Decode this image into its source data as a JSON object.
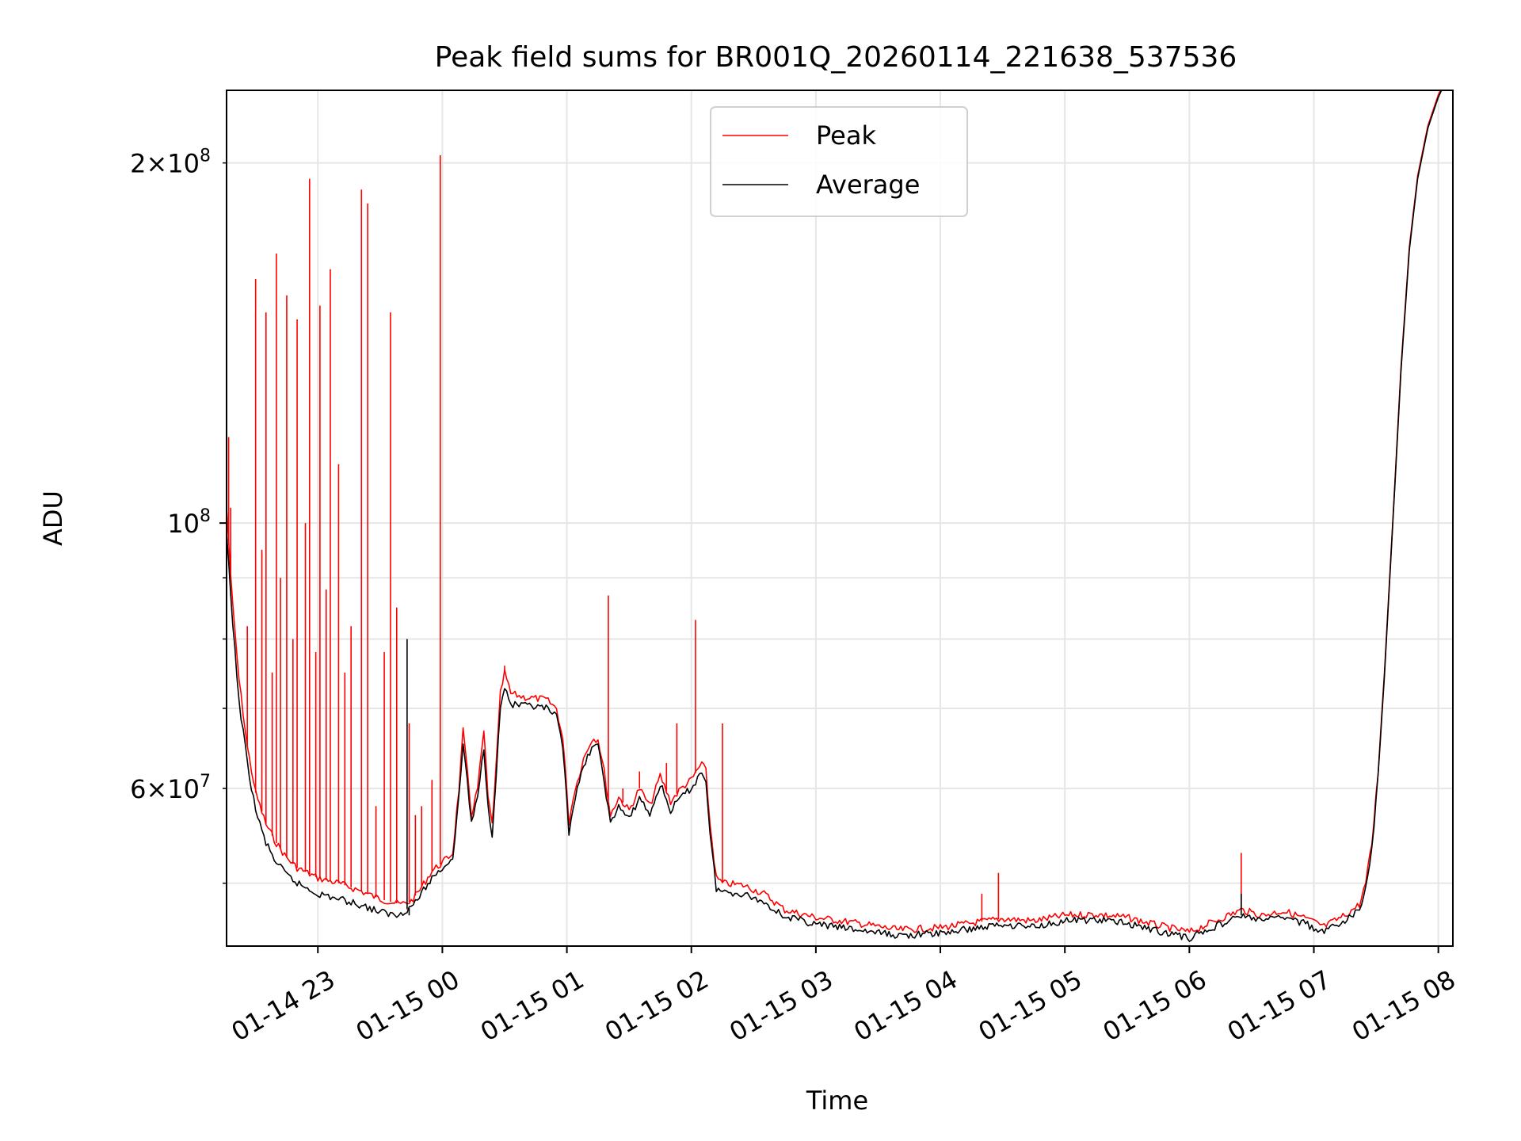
{
  "chart_data": {
    "type": "line",
    "title": "Peak field sums for BR001Q_20260114_221638_537536",
    "xlabel": "Time",
    "ylabel": "ADU",
    "y_scale": "log",
    "grid": true,
    "legend_position": "top-center",
    "xlim": [
      "2026-01-14 22:16",
      "2026-01-15 08:07"
    ],
    "ylim": [
      44300000,
      230000000
    ],
    "x_ticks": [
      {
        "value": "2026-01-14 23:00",
        "label": "01-14 23"
      },
      {
        "value": "2026-01-15 00:00",
        "label": "01-15 00"
      },
      {
        "value": "2026-01-15 01:00",
        "label": "01-15 01"
      },
      {
        "value": "2026-01-15 02:00",
        "label": "01-15 02"
      },
      {
        "value": "2026-01-15 03:00",
        "label": "01-15 03"
      },
      {
        "value": "2026-01-15 04:00",
        "label": "01-15 04"
      },
      {
        "value": "2026-01-15 05:00",
        "label": "01-15 05"
      },
      {
        "value": "2026-01-15 06:00",
        "label": "01-15 06"
      },
      {
        "value": "2026-01-15 07:00",
        "label": "01-15 07"
      },
      {
        "value": "2026-01-15 08:00",
        "label": "01-15 08"
      }
    ],
    "y_major_ticks": [
      {
        "value": 100000000,
        "base": "10",
        "exp": "8"
      }
    ],
    "y_minor_labeled_ticks": [
      {
        "value": 200000000,
        "mant": "2",
        "base": "10",
        "exp": "8"
      },
      {
        "value": 60000000,
        "mant": "6",
        "base": "10",
        "exp": "7"
      }
    ],
    "y_minor_grid": [
      50000000,
      70000000,
      80000000,
      90000000
    ],
    "series": [
      {
        "name": "Peak",
        "color": "#ff0000",
        "points": [
          [
            "2026-01-14 22:16",
            103000000
          ],
          [
            "2026-01-14 22:19",
            85000000
          ],
          [
            "2026-01-14 22:22",
            74000000
          ],
          [
            "2026-01-14 22:26",
            65000000
          ],
          [
            "2026-01-14 22:30",
            59500000
          ],
          [
            "2026-01-14 22:35",
            56000000
          ],
          [
            "2026-01-14 22:40",
            54000000
          ],
          [
            "2026-01-14 22:45",
            52500000
          ],
          [
            "2026-01-14 22:50",
            51500000
          ],
          [
            "2026-01-14 22:55",
            51000000
          ],
          [
            "2026-01-14 23:00",
            50500000
          ],
          [
            "2026-01-14 23:10",
            50000000
          ],
          [
            "2026-01-14 23:20",
            49300000
          ],
          [
            "2026-01-14 23:30",
            48500000
          ],
          [
            "2026-01-14 23:40",
            48000000
          ],
          [
            "2026-01-14 23:45",
            48300000
          ],
          [
            "2026-01-14 23:50",
            49600000
          ],
          [
            "2026-01-14 23:55",
            51200000
          ],
          [
            "2026-01-15 00:00",
            52000000
          ],
          [
            "2026-01-15 00:05",
            53000000
          ],
          [
            "2026-01-15 00:08",
            60000000
          ],
          [
            "2026-01-15 00:10",
            67000000
          ],
          [
            "2026-01-15 00:12",
            62000000
          ],
          [
            "2026-01-15 00:14",
            57000000
          ],
          [
            "2026-01-15 00:17",
            60000000
          ],
          [
            "2026-01-15 00:20",
            67000000
          ],
          [
            "2026-01-15 00:22",
            59000000
          ],
          [
            "2026-01-15 00:24",
            56000000
          ],
          [
            "2026-01-15 00:26",
            63000000
          ],
          [
            "2026-01-15 00:28",
            72000000
          ],
          [
            "2026-01-15 00:30",
            75000000
          ],
          [
            "2026-01-15 00:33",
            72000000
          ],
          [
            "2026-01-15 00:40",
            71500000
          ],
          [
            "2026-01-15 00:50",
            71200000
          ],
          [
            "2026-01-15 00:55",
            70000000
          ],
          [
            "2026-01-15 00:58",
            66000000
          ],
          [
            "2026-01-15 01:00",
            60000000
          ],
          [
            "2026-01-15 01:01",
            56000000
          ],
          [
            "2026-01-15 01:03",
            59000000
          ],
          [
            "2026-01-15 01:08",
            63500000
          ],
          [
            "2026-01-15 01:12",
            66000000
          ],
          [
            "2026-01-15 01:15",
            66000000
          ],
          [
            "2026-01-15 01:18",
            62000000
          ],
          [
            "2026-01-15 01:21",
            57000000
          ],
          [
            "2026-01-15 01:25",
            59000000
          ],
          [
            "2026-01-15 01:30",
            57500000
          ],
          [
            "2026-01-15 01:35",
            60000000
          ],
          [
            "2026-01-15 01:40",
            58000000
          ],
          [
            "2026-01-15 01:45",
            61500000
          ],
          [
            "2026-01-15 01:50",
            58500000
          ],
          [
            "2026-01-15 01:55",
            60000000
          ],
          [
            "2026-01-15 02:00",
            61000000
          ],
          [
            "2026-01-15 02:05",
            63000000
          ],
          [
            "2026-01-15 02:07",
            62000000
          ],
          [
            "2026-01-15 02:09",
            56000000
          ],
          [
            "2026-01-15 02:12",
            50500000
          ],
          [
            "2026-01-15 02:15",
            50000000
          ],
          [
            "2026-01-15 02:25",
            49800000
          ],
          [
            "2026-01-15 02:35",
            49000000
          ],
          [
            "2026-01-15 02:45",
            47500000
          ],
          [
            "2026-01-15 03:00",
            46800000
          ],
          [
            "2026-01-15 03:20",
            46300000
          ],
          [
            "2026-01-15 03:40",
            45700000
          ],
          [
            "2026-01-15 04:00",
            45900000
          ],
          [
            "2026-01-15 04:15",
            46300000
          ],
          [
            "2026-01-15 04:30",
            46700000
          ],
          [
            "2026-01-15 04:45",
            46500000
          ],
          [
            "2026-01-15 05:00",
            47000000
          ],
          [
            "2026-01-15 05:15",
            47100000
          ],
          [
            "2026-01-15 05:30",
            46800000
          ],
          [
            "2026-01-15 05:45",
            46100000
          ],
          [
            "2026-01-15 06:00",
            45500000
          ],
          [
            "2026-01-15 06:15",
            46700000
          ],
          [
            "2026-01-15 06:25",
            47500000
          ],
          [
            "2026-01-15 06:35",
            47000000
          ],
          [
            "2026-01-15 06:45",
            47400000
          ],
          [
            "2026-01-15 06:55",
            46800000
          ],
          [
            "2026-01-15 07:05",
            46000000
          ],
          [
            "2026-01-15 07:15",
            47000000
          ],
          [
            "2026-01-15 07:22",
            48000000
          ],
          [
            "2026-01-15 07:25",
            50000000
          ],
          [
            "2026-01-15 07:28",
            54000000
          ],
          [
            "2026-01-15 07:31",
            62000000
          ],
          [
            "2026-01-15 07:34",
            75000000
          ],
          [
            "2026-01-15 07:38",
            100000000
          ],
          [
            "2026-01-15 07:42",
            135000000
          ],
          [
            "2026-01-15 07:46",
            170000000
          ],
          [
            "2026-01-15 07:50",
            195000000
          ],
          [
            "2026-01-15 07:55",
            215000000
          ],
          [
            "2026-01-15 08:00",
            228000000
          ],
          [
            "2026-01-15 08:02",
            232000000
          ]
        ],
        "spikes": [
          [
            "2026-01-14 22:17",
            118000000
          ],
          [
            "2026-01-14 22:18",
            103000000
          ],
          [
            "2026-01-14 22:26",
            82000000
          ],
          [
            "2026-01-14 22:30",
            160000000
          ],
          [
            "2026-01-14 22:33",
            95000000
          ],
          [
            "2026-01-14 22:35",
            150000000
          ],
          [
            "2026-01-14 22:38",
            75000000
          ],
          [
            "2026-01-14 22:40",
            168000000
          ],
          [
            "2026-01-14 22:42",
            90000000
          ],
          [
            "2026-01-14 22:45",
            155000000
          ],
          [
            "2026-01-14 22:48",
            80000000
          ],
          [
            "2026-01-14 22:50",
            148000000
          ],
          [
            "2026-01-14 22:54",
            100000000
          ],
          [
            "2026-01-14 22:56",
            194000000
          ],
          [
            "2026-01-14 22:59",
            78000000
          ],
          [
            "2026-01-14 23:01",
            152000000
          ],
          [
            "2026-01-14 23:04",
            88000000
          ],
          [
            "2026-01-14 23:06",
            163000000
          ],
          [
            "2026-01-14 23:10",
            112000000
          ],
          [
            "2026-01-14 23:13",
            75000000
          ],
          [
            "2026-01-14 23:16",
            82000000
          ],
          [
            "2026-01-14 23:21",
            190000000
          ],
          [
            "2026-01-14 23:24",
            185000000
          ],
          [
            "2026-01-14 23:28",
            58000000
          ],
          [
            "2026-01-14 23:32",
            78000000
          ],
          [
            "2026-01-14 23:35",
            150000000
          ],
          [
            "2026-01-14 23:38",
            85000000
          ],
          [
            "2026-01-14 23:44",
            68000000
          ],
          [
            "2026-01-14 23:47",
            57000000
          ],
          [
            "2026-01-14 23:50",
            58000000
          ],
          [
            "2026-01-14 23:55",
            61000000
          ],
          [
            "2026-01-14 23:59",
            203000000
          ],
          [
            "2026-01-15 00:30",
            76000000
          ],
          [
            "2026-01-15 01:20",
            87000000
          ],
          [
            "2026-01-15 01:27",
            60000000
          ],
          [
            "2026-01-15 01:35",
            62000000
          ],
          [
            "2026-01-15 01:48",
            63000000
          ],
          [
            "2026-01-15 01:53",
            68000000
          ],
          [
            "2026-01-15 02:02",
            83000000
          ],
          [
            "2026-01-15 02:15",
            68000000
          ],
          [
            "2026-01-15 04:20",
            49000000
          ],
          [
            "2026-01-15 04:28",
            51000000
          ],
          [
            "2026-01-15 06:25",
            53000000
          ]
        ]
      },
      {
        "name": "Average",
        "color": "#000000",
        "points": [
          [
            "2026-01-14 22:16",
            98000000
          ],
          [
            "2026-01-14 22:19",
            82000000
          ],
          [
            "2026-01-14 22:22",
            71000000
          ],
          [
            "2026-01-14 22:26",
            63000000
          ],
          [
            "2026-01-14 22:30",
            57500000
          ],
          [
            "2026-01-14 22:35",
            54000000
          ],
          [
            "2026-01-14 22:40",
            52000000
          ],
          [
            "2026-01-14 22:45",
            50800000
          ],
          [
            "2026-01-14 22:50",
            50000000
          ],
          [
            "2026-01-14 22:55",
            49500000
          ],
          [
            "2026-01-14 23:00",
            49000000
          ],
          [
            "2026-01-14 23:10",
            48500000
          ],
          [
            "2026-01-14 23:20",
            48000000
          ],
          [
            "2026-01-14 23:30",
            47300000
          ],
          [
            "2026-01-14 23:38",
            47000000
          ],
          [
            "2026-01-14 23:40",
            47200000
          ],
          [
            "2026-01-14 23:45",
            47800000
          ],
          [
            "2026-01-14 23:50",
            49000000
          ],
          [
            "2026-01-14 23:55",
            50500000
          ],
          [
            "2026-01-15 00:00",
            51500000
          ],
          [
            "2026-01-15 00:05",
            52500000
          ],
          [
            "2026-01-15 00:08",
            59000000
          ],
          [
            "2026-01-15 00:10",
            65500000
          ],
          [
            "2026-01-15 00:12",
            61000000
          ],
          [
            "2026-01-15 00:14",
            56000000
          ],
          [
            "2026-01-15 00:17",
            59000000
          ],
          [
            "2026-01-15 00:20",
            65000000
          ],
          [
            "2026-01-15 00:22",
            58000000
          ],
          [
            "2026-01-15 00:24",
            55000000
          ],
          [
            "2026-01-15 00:26",
            62000000
          ],
          [
            "2026-01-15 00:28",
            70000000
          ],
          [
            "2026-01-15 00:30",
            73000000
          ],
          [
            "2026-01-15 00:33",
            70500000
          ],
          [
            "2026-01-15 00:40",
            70300000
          ],
          [
            "2026-01-15 00:50",
            70000000
          ],
          [
            "2026-01-15 00:55",
            68800000
          ],
          [
            "2026-01-15 00:58",
            65000000
          ],
          [
            "2026-01-15 01:00",
            59000000
          ],
          [
            "2026-01-15 01:01",
            55000000
          ],
          [
            "2026-01-15 01:03",
            58000000
          ],
          [
            "2026-01-15 01:08",
            62500000
          ],
          [
            "2026-01-15 01:12",
            65000000
          ],
          [
            "2026-01-15 01:15",
            65000000
          ],
          [
            "2026-01-15 01:18",
            61000000
          ],
          [
            "2026-01-15 01:21",
            56000000
          ],
          [
            "2026-01-15 01:25",
            58000000
          ],
          [
            "2026-01-15 01:30",
            56500000
          ],
          [
            "2026-01-15 01:35",
            59000000
          ],
          [
            "2026-01-15 01:40",
            57000000
          ],
          [
            "2026-01-15 01:45",
            60500000
          ],
          [
            "2026-01-15 01:50",
            57500000
          ],
          [
            "2026-01-15 01:55",
            59000000
          ],
          [
            "2026-01-15 02:00",
            60000000
          ],
          [
            "2026-01-15 02:05",
            62000000
          ],
          [
            "2026-01-15 02:07",
            61000000
          ],
          [
            "2026-01-15 02:09",
            55000000
          ],
          [
            "2026-01-15 02:12",
            49500000
          ],
          [
            "2026-01-15 02:15",
            49200000
          ],
          [
            "2026-01-15 02:25",
            49000000
          ],
          [
            "2026-01-15 02:35",
            48200000
          ],
          [
            "2026-01-15 02:45",
            46900000
          ],
          [
            "2026-01-15 03:00",
            46200000
          ],
          [
            "2026-01-15 03:20",
            45700000
          ],
          [
            "2026-01-15 03:40",
            45200000
          ],
          [
            "2026-01-15 04:00",
            45400000
          ],
          [
            "2026-01-15 04:15",
            45800000
          ],
          [
            "2026-01-15 04:30",
            46200000
          ],
          [
            "2026-01-15 04:45",
            46000000
          ],
          [
            "2026-01-15 05:00",
            46500000
          ],
          [
            "2026-01-15 05:15",
            46600000
          ],
          [
            "2026-01-15 05:30",
            46300000
          ],
          [
            "2026-01-15 05:45",
            45600000
          ],
          [
            "2026-01-15 06:00",
            45000000
          ],
          [
            "2026-01-15 06:15",
            46200000
          ],
          [
            "2026-01-15 06:25",
            47000000
          ],
          [
            "2026-01-15 06:35",
            46500000
          ],
          [
            "2026-01-15 06:45",
            46900000
          ],
          [
            "2026-01-15 06:55",
            46300000
          ],
          [
            "2026-01-15 07:05",
            45500000
          ],
          [
            "2026-01-15 07:15",
            46500000
          ],
          [
            "2026-01-15 07:22",
            47500000
          ],
          [
            "2026-01-15 07:25",
            49500000
          ],
          [
            "2026-01-15 07:28",
            53500000
          ],
          [
            "2026-01-15 07:31",
            61500000
          ],
          [
            "2026-01-15 07:34",
            74500000
          ],
          [
            "2026-01-15 07:38",
            99500000
          ],
          [
            "2026-01-15 07:42",
            134000000
          ],
          [
            "2026-01-15 07:46",
            169000000
          ],
          [
            "2026-01-15 07:50",
            194000000
          ],
          [
            "2026-01-15 07:55",
            214000000
          ],
          [
            "2026-01-15 08:00",
            227000000
          ],
          [
            "2026-01-15 08:02",
            231000000
          ]
        ],
        "spikes": [
          [
            "2026-01-14 23:43",
            80000000
          ],
          [
            "2026-01-14 23:44",
            47000000
          ],
          [
            "2026-01-15 06:25",
            49000000
          ]
        ]
      }
    ]
  }
}
